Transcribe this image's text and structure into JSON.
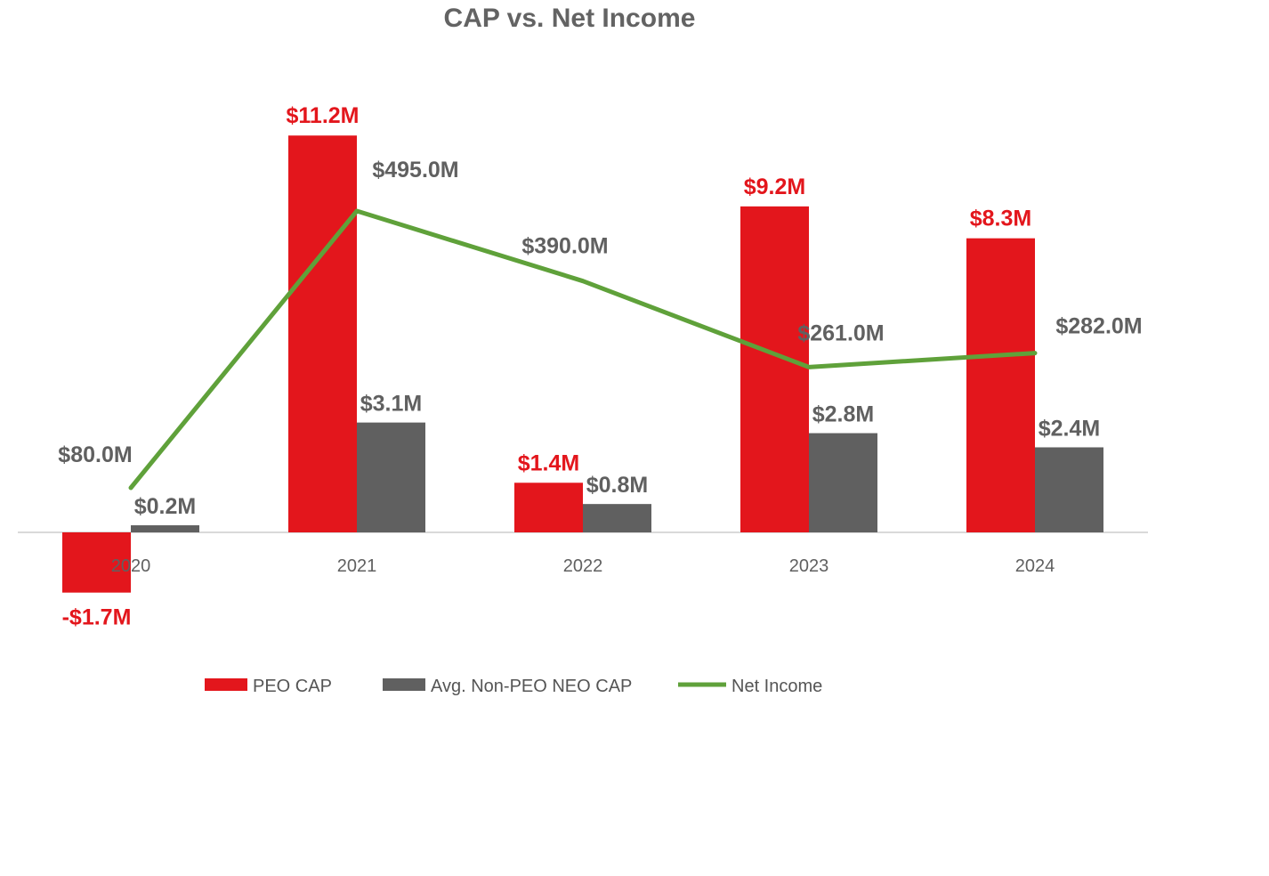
{
  "chart_data": {
    "type": "bar",
    "title": "CAP vs. Net Income",
    "categories": [
      "2020",
      "2021",
      "2022",
      "2023",
      "2024"
    ],
    "series": [
      {
        "name": "PEO CAP",
        "kind": "bar",
        "color": "#E3161C",
        "values": [
          -1.7,
          11.2,
          1.4,
          9.2,
          8.3
        ],
        "labels": [
          "-$1.7M",
          "$11.2M",
          "$1.4M",
          "$9.2M",
          "$8.3M"
        ]
      },
      {
        "name": "Avg. Non-PEO NEO CAP",
        "kind": "bar",
        "color": "#606060",
        "values": [
          0.2,
          3.1,
          0.8,
          2.8,
          2.4
        ],
        "labels": [
          "$0.2M",
          "$3.1M",
          "$0.8M",
          "$2.8M",
          "$2.4M"
        ]
      },
      {
        "name": "Net Income",
        "kind": "line",
        "color": "#5FA13A",
        "values": [
          80.0,
          495.0,
          390.0,
          261.0,
          282.0
        ],
        "labels": [
          "$80.0M",
          "$495.0M",
          "$390.0M",
          "$261.0M",
          "$282.0M"
        ]
      }
    ],
    "label_colors": {
      "peo": "#E3161C",
      "other": "#606060"
    },
    "axis_color": "#D9D9D9",
    "legend_position": "bottom",
    "xlabel": "",
    "ylabel": "",
    "grid": false
  }
}
